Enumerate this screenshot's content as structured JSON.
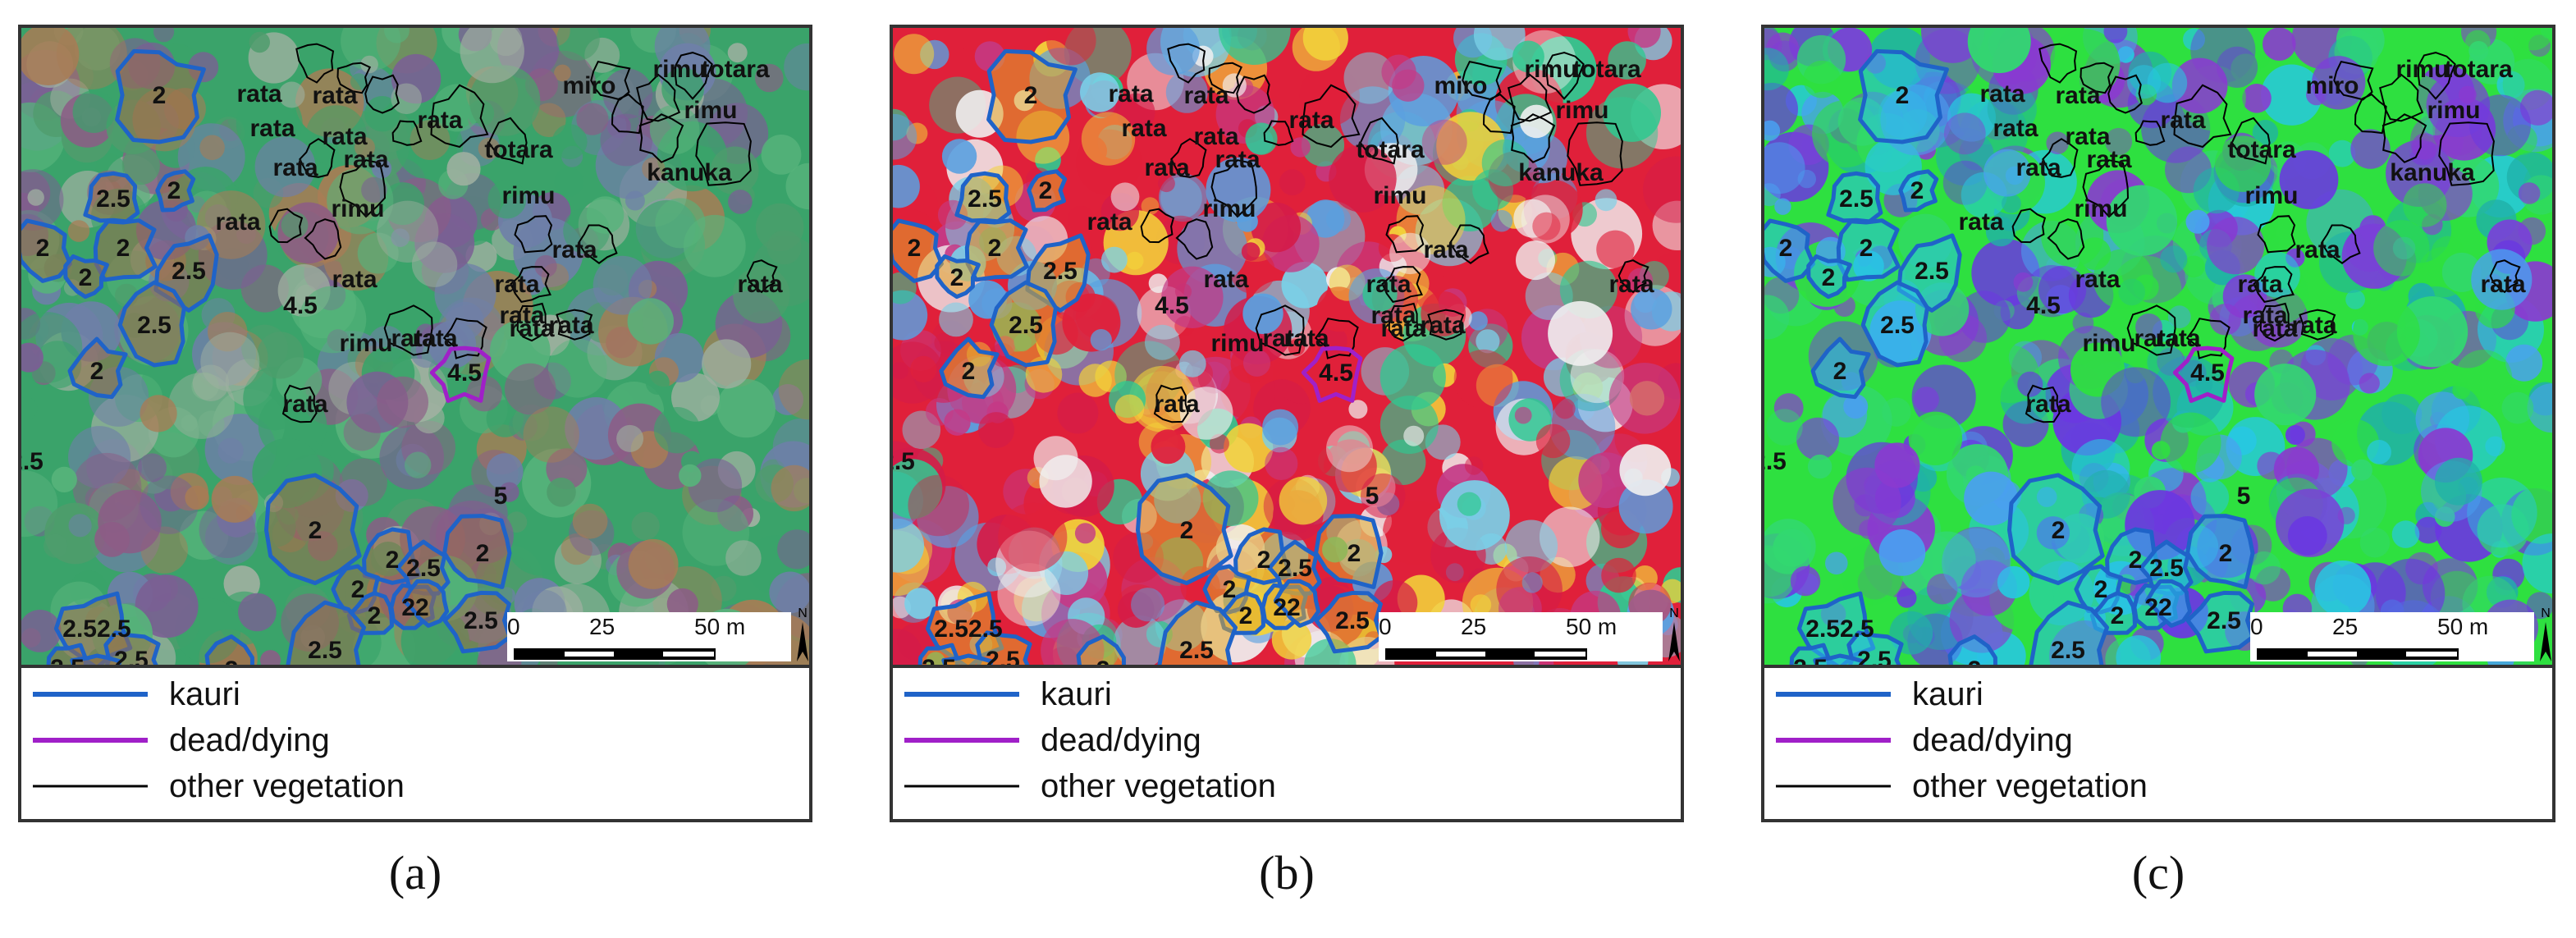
{
  "colors": {
    "kauri": "#1f63c8",
    "dead": "#a020c8",
    "other": "#000000"
  },
  "panels": [
    {
      "id": "a",
      "caption": "(a)",
      "palette": [
        "#3aa36a",
        "#57b37b",
        "#8c5c86",
        "#6e7fa8",
        "#a87c55",
        "#4f9c6c",
        "#7a5f94",
        "#9fb0a0"
      ],
      "crown_fill": "#9a6d49"
    },
    {
      "id": "b",
      "caption": "(b)",
      "palette": [
        "#e0203a",
        "#d41c48",
        "#30c890",
        "#f0f0f0",
        "#7ad0e8",
        "#f2d23a",
        "#c43a86",
        "#5aa0e0"
      ],
      "crown_fill": "#e0a82a"
    },
    {
      "id": "c",
      "caption": "(c)",
      "palette": [
        "#2ee040",
        "#27c8e0",
        "#6a38e0",
        "#4aa0f0",
        "#32d870",
        "#7a40d8",
        "#20b0a8",
        "#8a3ad0"
      ],
      "crown_fill": "#2cc0e8"
    }
  ],
  "kauri_labels": [
    "2",
    "2.5",
    "2",
    "2",
    "2",
    "2.5",
    "2",
    "2.5",
    "2",
    "2",
    "2",
    "2.5",
    "2",
    "2",
    "2",
    "22",
    "2.5",
    "2.52.5",
    "2.5",
    "2.5",
    "2",
    "2",
    "2.5",
    "2.5"
  ],
  "dead_labels": [
    "4.5",
    "4.5",
    "5"
  ],
  "other_labels": [
    "rata",
    "rata",
    "rata",
    "rata",
    "rata",
    "rata",
    "rata",
    "rata",
    "rata",
    "rata",
    "rata",
    "rata",
    "rata",
    "rata",
    "rata",
    "rata",
    "rata",
    "rata",
    "miro",
    "rimu",
    "totara",
    "totara",
    "rimu",
    "rimu",
    "rimu",
    "rimu",
    "kanuka"
  ],
  "scale": {
    "zero": "0",
    "mid": "25",
    "end": "50 m",
    "north": "N"
  },
  "legend": {
    "kauri": "kauri",
    "dead": "dead/dying",
    "other": "other vegetation"
  }
}
